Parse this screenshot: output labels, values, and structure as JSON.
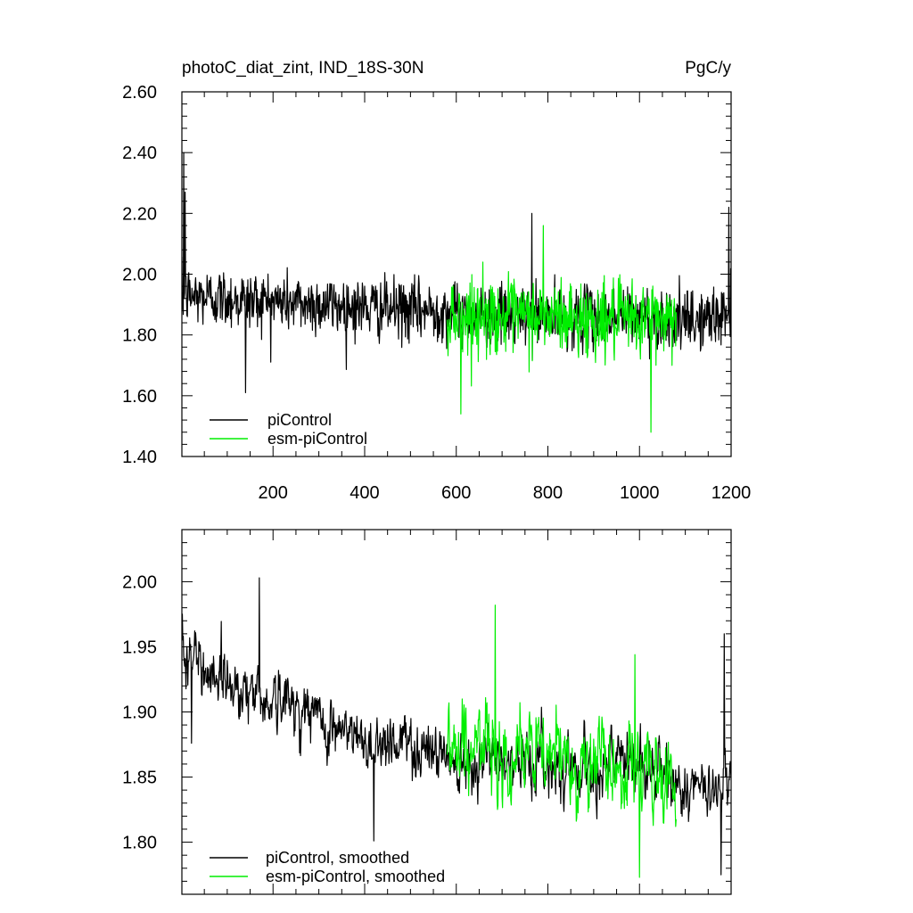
{
  "chart_data": [
    {
      "type": "line",
      "title": "photoC_diat_zint, IND_18S-30N",
      "units": "PgC/y",
      "xlim": [
        1,
        1200
      ],
      "ylim": [
        1.4,
        2.6
      ],
      "x_ticks": [
        200,
        400,
        600,
        800,
        1000,
        1200
      ],
      "x_tick_labels": [
        "200",
        "400",
        "600",
        "800",
        "1000",
        "1200"
      ],
      "y_ticks": [
        1.4,
        1.6,
        1.8,
        2.0,
        2.2,
        2.4,
        2.6
      ],
      "y_tick_labels": [
        "1.40",
        "1.60",
        "1.80",
        "2.00",
        "2.20",
        "2.40",
        "2.60"
      ],
      "legend_position": "bottom-left",
      "series": [
        {
          "name": "piControl",
          "color": "#000000",
          "x_range": [
            1,
            1200
          ],
          "keypoints_x": [
            1,
            10,
            100,
            200,
            300,
            400,
            500,
            580,
            600,
            700,
            800,
            900,
            1000,
            1080,
            1100,
            1200
          ],
          "keypoints_mean": [
            1.92,
            1.93,
            1.92,
            1.91,
            1.9,
            1.89,
            1.88,
            1.88,
            1.87,
            1.86,
            1.86,
            1.86,
            1.86,
            1.85,
            1.84,
            1.87
          ],
          "spread": 0.09,
          "annotated_values": {
            "5": 2.4,
            "8": 2.27,
            "140": 1.61,
            "765": 2.2,
            "1195": 2.22
          }
        },
        {
          "name": "esm-piControl",
          "color": "#00ee00",
          "x_range": [
            580,
            1080
          ],
          "keypoints_x": [
            580,
            700,
            800,
            900,
            1000,
            1080
          ],
          "keypoints_mean": [
            1.87,
            1.86,
            1.86,
            1.85,
            1.85,
            1.86
          ],
          "spread": 0.11,
          "annotated_values": {
            "610": 1.54,
            "790": 2.16,
            "1025": 1.48
          }
        }
      ]
    },
    {
      "type": "line",
      "title": "",
      "xlim": [
        1,
        1200
      ],
      "ylim": [
        1.76,
        2.04
      ],
      "x_ticks": [
        200,
        400,
        600,
        800,
        1000,
        1200
      ],
      "y_ticks": [
        1.8,
        1.85,
        1.9,
        1.95,
        2.0
      ],
      "y_tick_labels": [
        "1.80",
        "1.85",
        "1.90",
        "1.95",
        "2.00"
      ],
      "legend_position": "bottom-left",
      "series": [
        {
          "name": "piControl, smoothed",
          "color": "#000000",
          "x_range": [
            1,
            1200
          ],
          "keypoints_x": [
            1,
            10,
            50,
            100,
            150,
            200,
            250,
            300,
            350,
            400,
            450,
            500,
            550,
            600,
            700,
            800,
            900,
            1000,
            1080,
            1150,
            1200
          ],
          "keypoints_mean": [
            1.97,
            1.94,
            1.935,
            1.925,
            1.915,
            1.91,
            1.905,
            1.895,
            1.885,
            1.875,
            1.88,
            1.875,
            1.87,
            1.865,
            1.865,
            1.86,
            1.86,
            1.86,
            1.845,
            1.835,
            1.86
          ],
          "spread": 0.018,
          "annotated_values": {
            "170": 2.003,
            "22": 1.876,
            "420": 1.801,
            "1185": 1.96,
            "1178": 1.775
          }
        },
        {
          "name": "esm-piControl, smoothed",
          "color": "#00ee00",
          "x_range": [
            580,
            1080
          ],
          "keypoints_x": [
            580,
            650,
            700,
            800,
            900,
            1000,
            1080
          ],
          "keypoints_mean": [
            1.875,
            1.87,
            1.87,
            1.865,
            1.86,
            1.855,
            1.845
          ],
          "spread": 0.025,
          "annotated_values": {
            "685": 1.982,
            "990": 1.944,
            "1000": 1.773
          }
        }
      ]
    }
  ]
}
